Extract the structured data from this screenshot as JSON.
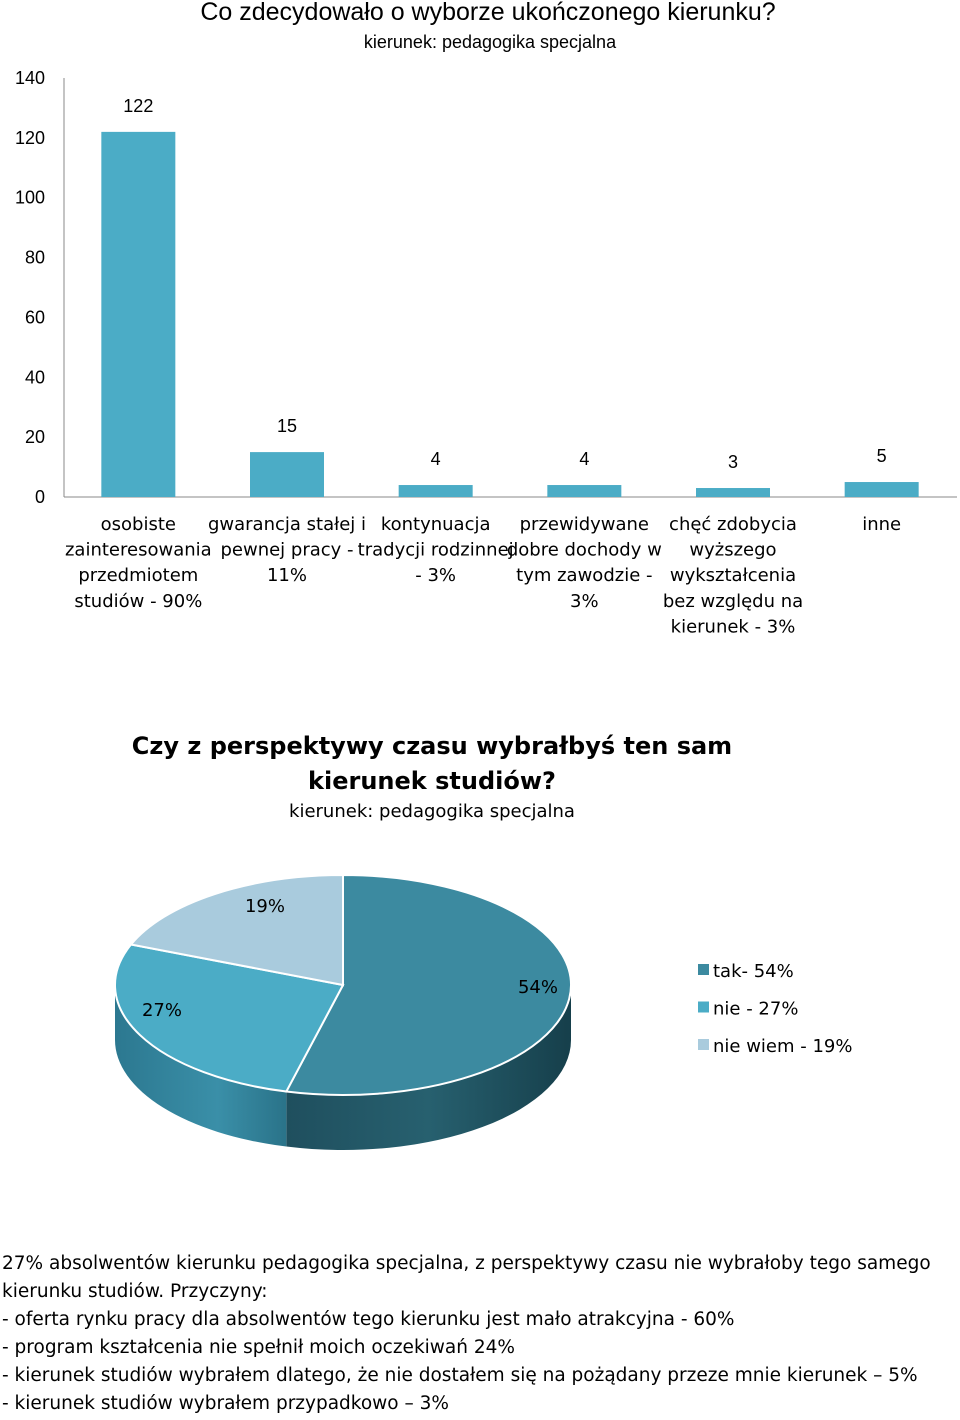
{
  "chart_data": [
    {
      "type": "bar",
      "title": "Co zdecydowało o wyborze ukończonego kierunku?",
      "subtitle": "kierunek: pedagogika specjalna",
      "categories": [
        [
          "osobiste",
          "zainteresowania",
          "przedmiotem",
          "studiów - 90%"
        ],
        [
          "gwarancja stałej i",
          "pewnej pracy -",
          "11%"
        ],
        [
          "kontynuacja",
          "tradycji rodzinnej",
          "- 3%"
        ],
        [
          "przewidywane",
          "dobre dochody w",
          "tym zawodzie -",
          "3%"
        ],
        [
          "chęć zdobycia",
          "wyższego",
          "wykształcenia",
          "bez względu na",
          "kierunek - 3%"
        ],
        [
          "inne"
        ]
      ],
      "values": [
        122,
        15,
        4,
        4,
        3,
        5
      ],
      "ylim": [
        0,
        140
      ],
      "yticks": [
        0,
        20,
        40,
        60,
        80,
        100,
        120,
        140
      ],
      "grid": false,
      "color": "#4bacc6"
    },
    {
      "type": "pie",
      "title_lines": [
        "Czy z perspektywy czasu wybrałbyś ten sam",
        "kierunek studiów?"
      ],
      "subtitle": "kierunek: pedagogika specjalna",
      "labels": [
        "tak- 54%",
        "nie - 27%",
        "nie wiem - 19%"
      ],
      "values": [
        54,
        27,
        19
      ],
      "value_labels": [
        "54%",
        "27%",
        "19%"
      ],
      "colors": [
        "#3c8aa0",
        "#4bacc6",
        "#a9cbdd"
      ],
      "legend": "right",
      "style": "3d"
    }
  ],
  "notes": {
    "intro": "27% absolwentów kierunku pedagogika specjalna,  z perspektywy czasu nie wybrałoby tego samego kierunku studiów. Przyczyny:",
    "reasons": [
      "- oferta rynku pracy dla absolwentów tego kierunku jest mało atrakcyjna  - 60%",
      "- program kształcenia nie spełnił moich oczekiwań  24%",
      "- kierunek studiów wybrałem dlatego, że nie dostałem  się na pożądany przeze mnie kierunek – 5%",
      "- kierunek studiów wybrałem przypadkowo – 3%"
    ]
  }
}
